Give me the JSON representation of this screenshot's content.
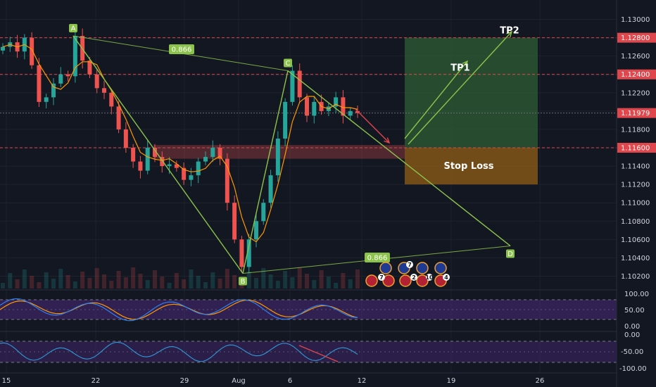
{
  "colors": {
    "background": "#131722",
    "grid": "#1e222d",
    "axis_text": "#d1d4dc",
    "level_line": "#e0474c",
    "price_tag": "#e0474c",
    "current_line": "#6a6d78",
    "candle_up": "#26a69a",
    "candle_down": "#ef5350",
    "ma": "#ff9800",
    "pattern": "#8bc34a",
    "profit_zone": "#2e5d34",
    "stop_zone": "#8a5a16",
    "resistance_band": "#e05050",
    "stoch_k": "#2f80ed",
    "stoch_d": "#ff9800",
    "rsi_line": "#2f9ad8",
    "osc_band": "#4a2a7a",
    "divergence": "#e0474c"
  },
  "price_axis": {
    "ticks": [
      "1.13000",
      "1.12800",
      "1.12600",
      "1.12400",
      "1.12200",
      "1.12000",
      "1.11800",
      "1.11600",
      "1.11400",
      "1.11200",
      "1.11000",
      "1.10800",
      "1.10600",
      "1.10400",
      "1.10200"
    ],
    "tick_values": [
      1.13,
      1.128,
      1.126,
      1.124,
      1.122,
      1.12,
      1.118,
      1.116,
      1.114,
      1.112,
      1.11,
      1.108,
      1.106,
      1.104,
      1.102
    ],
    "tags": [
      {
        "label": "1.12800",
        "value": 1.128
      },
      {
        "label": "1.12400",
        "value": 1.124
      },
      {
        "label": "1.11979",
        "value": 1.11979
      },
      {
        "label": "1.11600",
        "value": 1.116
      }
    ]
  },
  "stoch_axis": {
    "ticks": [
      "100.00",
      "50.00",
      "0.00"
    ]
  },
  "rsi_axis": {
    "ticks": [
      "0.00",
      "-50.00",
      "-100.00"
    ]
  },
  "time_axis": {
    "labels": [
      "15",
      "22",
      "29",
      "Aug",
      "6",
      "12",
      "19",
      "26"
    ]
  },
  "pattern": {
    "points": [
      {
        "label": "A",
        "value": 1.1282
      },
      {
        "label": "B",
        "value": 1.1023
      },
      {
        "label": "C",
        "value": 1.1244
      },
      {
        "label": "D",
        "value": 1.1053
      }
    ],
    "ratios": [
      "0.866",
      "0.866"
    ]
  },
  "targets": {
    "tp1_label": "TP1",
    "tp2_label": "TP2",
    "stop_label": "Stop Loss",
    "entry": 1.116,
    "tp1": 1.124,
    "tp2": 1.128,
    "stop": 1.112
  },
  "events": {
    "counts": [
      "7",
      "7",
      "2",
      "10",
      "4"
    ],
    "icon_names": [
      "eu-flag-icon",
      "us-flag-icon"
    ]
  },
  "chart_data": {
    "type": "line",
    "title": "",
    "xlabel": "",
    "ylabel": "",
    "ylim": [
      1.1005,
      1.1315
    ],
    "series": [
      {
        "values": [
          1.127,
          1.1275,
          1.1265,
          1.128,
          1.125,
          1.121,
          1.1215,
          1.123,
          1.124,
          1.1238,
          1.1282,
          1.1255,
          1.124,
          1.1225,
          1.122,
          1.1205,
          1.118,
          1.116,
          1.1145,
          1.1135,
          1.116,
          1.115,
          1.114,
          1.1142,
          1.1138,
          1.1125,
          1.113,
          1.1145,
          1.115,
          1.116,
          1.1148,
          1.11,
          1.106,
          1.103,
          1.106,
          1.108,
          1.11,
          1.113,
          1.117,
          1.121,
          1.1244,
          1.1215,
          1.1195,
          1.121,
          1.12,
          1.1205,
          1.1215,
          1.1195,
          1.12,
          1.1198
        ]
      }
    ]
  }
}
